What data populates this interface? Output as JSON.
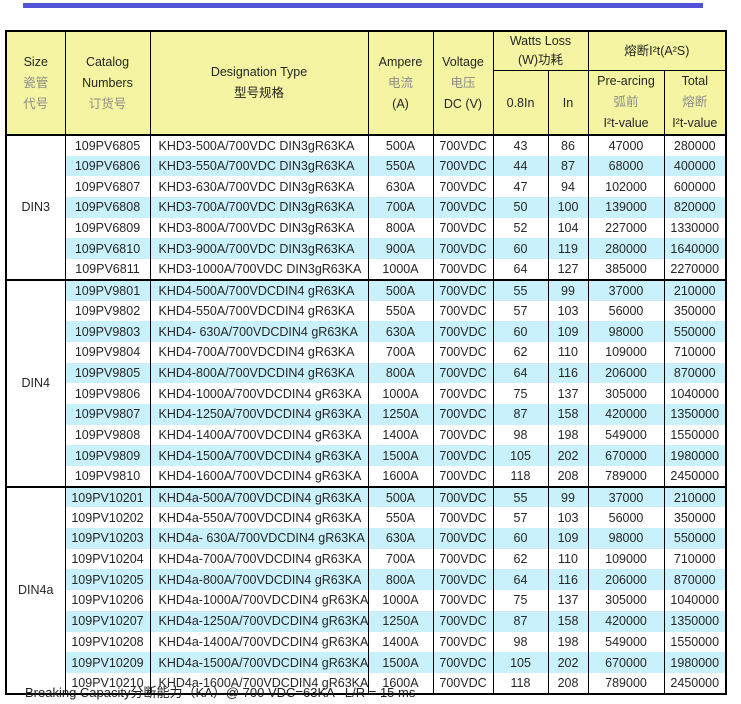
{
  "colors": {
    "header_bg": "#f4f4a2",
    "stripe_bg": "#c9f1fb",
    "top_bar": "#5055d5",
    "border": "#000000",
    "text": "#262626",
    "muted_chinese": "#8c8c8c"
  },
  "header": {
    "size_en": "Size",
    "size_cn1": "瓷管",
    "size_cn2": "代号",
    "catalog_en1": "Catalog",
    "catalog_en2": "Numbers",
    "catalog_cn": "订货号",
    "designation_en": "Designation Type",
    "designation_cn": "型号规格",
    "ampere_en": "Ampere",
    "ampere_cn": "电流",
    "ampere_unit": "(A)",
    "voltage_en": "Voltage",
    "voltage_cn": "电压",
    "voltage_unit": "DC (V)",
    "watts_en": "Watts Loss",
    "watts_cn": "(W)功耗",
    "watts_sub1": "0.8In",
    "watts_sub2": "In",
    "i2t_group": "熔断I²t(A²S)",
    "prearcing_en": "Pre-arcing",
    "prearcing_cn": "弧前",
    "prearcing_sub": "I²t-value",
    "total_en": "Total",
    "total_cn": "熔断",
    "total_sub": "I²t-value"
  },
  "sections": [
    {
      "size": "DIN3",
      "rows": [
        [
          "109PV6805",
          "KHD3-500A/700VDC DIN3gR63KA",
          "500A",
          "700VDC",
          "43",
          "86",
          "47000",
          "280000"
        ],
        [
          "109PV6806",
          "KHD3-550A/700VDC DIN3gR63KA",
          "550A",
          "700VDC",
          "44",
          "87",
          "68000",
          "400000"
        ],
        [
          "109PV6807",
          "KHD3-630A/700VDC DIN3gR63KA",
          "630A",
          "700VDC",
          "47",
          "94",
          "102000",
          "600000"
        ],
        [
          "109PV6808",
          "KHD3-700A/700VDC DIN3gR63KA",
          "700A",
          "700VDC",
          "50",
          "100",
          "139000",
          "820000"
        ],
        [
          "109PV6809",
          "KHD3-800A/700VDC DIN3gR63KA",
          "800A",
          "700VDC",
          "52",
          "104",
          "227000",
          "1330000"
        ],
        [
          "109PV6810",
          "KHD3-900A/700VDC DIN3gR63KA",
          "900A",
          "700VDC",
          "60",
          "119",
          "280000",
          "1640000"
        ],
        [
          "109PV6811",
          "KHD3-1000A/700VDC DIN3gR63KA",
          "1000A",
          "700VDC",
          "64",
          "127",
          "385000",
          "2270000"
        ]
      ]
    },
    {
      "size": "DIN4",
      "rows": [
        [
          "109PV9801",
          "KHD4-500A/700VDCDIN4 gR63KA",
          "500A",
          "700VDC",
          "55",
          "99",
          "37000",
          "210000"
        ],
        [
          "109PV9802",
          "KHD4-550A/700VDCDIN4 gR63KA",
          "550A",
          "700VDC",
          "57",
          "103",
          "56000",
          "350000"
        ],
        [
          "109PV9803",
          "KHD4- 630A/700VDCDIN4 gR63KA",
          "630A",
          "700VDC",
          "60",
          "109",
          "98000",
          "550000"
        ],
        [
          "109PV9804",
          "KHD4-700A/700VDCDIN4 gR63KA",
          "700A",
          "700VDC",
          "62",
          "110",
          "109000",
          "710000"
        ],
        [
          "109PV9805",
          "KHD4-800A/700VDCDIN4 gR63KA",
          "800A",
          "700VDC",
          "64",
          "116",
          "206000",
          "870000"
        ],
        [
          "109PV9806",
          "KHD4-1000A/700VDCDIN4 gR63KA",
          "1000A",
          "700VDC",
          "75",
          "137",
          "305000",
          "1040000"
        ],
        [
          "109PV9807",
          "KHD4-1250A/700VDCDIN4 gR63KA",
          "1250A",
          "700VDC",
          "87",
          "158",
          "420000",
          "1350000"
        ],
        [
          "109PV9808",
          "KHD4-1400A/700VDCDIN4 gR63KA",
          "1400A",
          "700VDC",
          "98",
          "198",
          "549000",
          "1550000"
        ],
        [
          "109PV9809",
          "KHD4-1500A/700VDCDIN4 gR63KA",
          "1500A",
          "700VDC",
          "105",
          "202",
          "670000",
          "1980000"
        ],
        [
          "109PV9810",
          "KHD4-1600A/700VDCDIN4 gR63KA",
          "1600A",
          "700VDC",
          "118",
          "208",
          "789000",
          "2450000"
        ]
      ]
    },
    {
      "size": "DIN4a",
      "rows": [
        [
          "109PV10201",
          "KHD4a-500A/700VDCDIN4 gR63KA",
          "500A",
          "700VDC",
          "55",
          "99",
          "37000",
          "210000"
        ],
        [
          "109PV10202",
          "KHD4a-550A/700VDCDIN4 gR63KA",
          "550A",
          "700VDC",
          "57",
          "103",
          "56000",
          "350000"
        ],
        [
          "109PV10203",
          "KHD4a- 630A/700VDCDIN4 gR63KA",
          "630A",
          "700VDC",
          "60",
          "109",
          "98000",
          "550000"
        ],
        [
          "109PV10204",
          "KHD4a-700A/700VDCDIN4 gR63KA",
          "700A",
          "700VDC",
          "62",
          "110",
          "109000",
          "710000"
        ],
        [
          "109PV10205",
          "KHD4a-800A/700VDCDIN4 gR63KA",
          "800A",
          "700VDC",
          "64",
          "116",
          "206000",
          "870000"
        ],
        [
          "109PV10206",
          "KHD4a-1000A/700VDCDIN4 gR63KA",
          "1000A",
          "700VDC",
          "75",
          "137",
          "305000",
          "1040000"
        ],
        [
          "109PV10207",
          "KHD4a-1250A/700VDCDIN4 gR63KA",
          "1250A",
          "700VDC",
          "87",
          "158",
          "420000",
          "1350000"
        ],
        [
          "109PV10208",
          "KHD4a-1400A/700VDCDIN4 gR63KA",
          "1400A",
          "700VDC",
          "98",
          "198",
          "549000",
          "1550000"
        ],
        [
          "109PV10209",
          "KHD4a-1500A/700VDCDIN4 gR63KA",
          "1500A",
          "700VDC",
          "105",
          "202",
          "670000",
          "1980000"
        ],
        [
          "109PV10210",
          "KHD4a-1600A/700VDCDIN4 gR63KA",
          "1600A",
          "700VDC",
          "118",
          "208",
          "789000",
          "2450000"
        ]
      ]
    }
  ],
  "cell_names": [
    "catalog-cell",
    "designation-cell",
    "ampere-cell",
    "voltage-cell",
    "watts-08in-cell",
    "watts-in-cell",
    "prearcing-cell",
    "total-cell"
  ],
  "footer": {
    "note": "Breaking Capacity分断能力（KA）@ 700 VDC=63KA   L/R = 15 ms"
  }
}
